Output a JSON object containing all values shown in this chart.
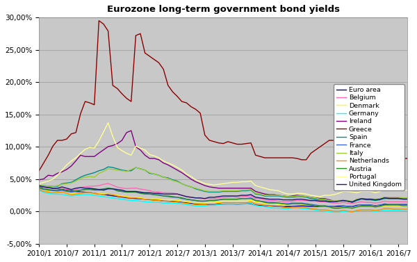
{
  "title": "Eurozone long-term government bond yields",
  "fig_background": "#FFFFFF",
  "plot_bg_color": "#C8C8C8",
  "ylim": [
    -0.05,
    0.3
  ],
  "yticks": [
    -0.05,
    0.0,
    0.05,
    0.1,
    0.15,
    0.2,
    0.25,
    0.3
  ],
  "xtick_labels": [
    "2010/1",
    "2010/7",
    "2011/1",
    "2011/7",
    "2012/1",
    "2012/7",
    "2013/1",
    "2013/7",
    "2014/1",
    "2014/7",
    "2015/1",
    "2015/7",
    "2016/1",
    "2016/7"
  ],
  "series_order": [
    "Euro area",
    "Belgium",
    "Denmark",
    "Germany",
    "Ireland",
    "Greece",
    "Spain",
    "France",
    "Italy",
    "Netherlands",
    "Austria",
    "Portugal",
    "United Kingdom"
  ],
  "series": {
    "Euro area": {
      "color": "#00008B",
      "linewidth": 1.0
    },
    "Belgium": {
      "color": "#FF69B4",
      "linewidth": 1.0
    },
    "Denmark": {
      "color": "#FFFF00",
      "linewidth": 1.0
    },
    "Germany": {
      "color": "#00FFFF",
      "linewidth": 1.0
    },
    "Ireland": {
      "color": "#800080",
      "linewidth": 1.0
    },
    "Greece": {
      "color": "#8B0000",
      "linewidth": 1.0
    },
    "Spain": {
      "color": "#008B8B",
      "linewidth": 1.0
    },
    "France": {
      "color": "#4169E1",
      "linewidth": 1.0
    },
    "Italy": {
      "color": "#9ACD32",
      "linewidth": 1.0
    },
    "Netherlands": {
      "color": "#FF8C00",
      "linewidth": 1.0
    },
    "Austria": {
      "color": "#228B22",
      "linewidth": 1.0
    },
    "Portugal": {
      "color": "#FFFF99",
      "linewidth": 1.0
    },
    "United Kingdom": {
      "color": "#191970",
      "linewidth": 1.0
    }
  },
  "data": {
    "Euro area": [
      0.039,
      0.038,
      0.037,
      0.036,
      0.0355,
      0.0345,
      0.0335,
      0.0325,
      0.031,
      0.0305,
      0.03,
      0.0295,
      0.0285,
      0.0275,
      0.0265,
      0.0255,
      0.0245,
      0.0235,
      0.0225,
      0.0215,
      0.0208,
      0.0203,
      0.0198,
      0.0193,
      0.0188,
      0.0183,
      0.0175,
      0.0165,
      0.016,
      0.0158,
      0.0152,
      0.0145,
      0.0138,
      0.0128,
      0.0118,
      0.0112,
      0.011,
      0.0112,
      0.0113,
      0.0115,
      0.0117,
      0.0118,
      0.0118,
      0.0116,
      0.0118,
      0.012,
      0.0122,
      0.01,
      0.0098,
      0.0092,
      0.0088,
      0.0085,
      0.0082,
      0.0075,
      0.0078,
      0.008,
      0.0085,
      0.0088,
      0.0085,
      0.0082,
      0.008,
      0.0078,
      0.0085,
      0.008,
      0.0078,
      0.0085,
      0.0088,
      0.0082,
      0.0078,
      0.0098,
      0.01,
      0.01,
      0.01,
      0.0092,
      0.0098,
      0.0108,
      0.0108,
      0.0108,
      0.0108,
      0.0108,
      0.0108
    ],
    "Belgium": [
      0.0395,
      0.0378,
      0.0372,
      0.0365,
      0.0358,
      0.0358,
      0.0342,
      0.0335,
      0.0342,
      0.0372,
      0.0385,
      0.0392,
      0.0395,
      0.0402,
      0.0422,
      0.0435,
      0.0408,
      0.0378,
      0.0365,
      0.0355,
      0.0362,
      0.0365,
      0.0348,
      0.0338,
      0.0325,
      0.0305,
      0.0302,
      0.0292,
      0.029,
      0.0288,
      0.0272,
      0.0255,
      0.0235,
      0.0222,
      0.0212,
      0.0202,
      0.02,
      0.0202,
      0.0202,
      0.0212,
      0.0222,
      0.0225,
      0.0232,
      0.0222,
      0.0232,
      0.0235,
      0.0242,
      0.02,
      0.0202,
      0.0182,
      0.0172,
      0.0172,
      0.0162,
      0.0152,
      0.0152,
      0.0162,
      0.0172,
      0.0172,
      0.0172,
      0.0162,
      0.0162,
      0.0152,
      0.0152,
      0.0142,
      0.0132,
      0.0132,
      0.0142,
      0.0132,
      0.0122,
      0.0142,
      0.0152,
      0.0142,
      0.0142,
      0.0132,
      0.0142,
      0.0162,
      0.0152,
      0.0152,
      0.0152,
      0.0152,
      0.0152
    ],
    "Denmark": [
      0.0368,
      0.0335,
      0.0322,
      0.0312,
      0.0302,
      0.0302,
      0.0282,
      0.0272,
      0.0282,
      0.0292,
      0.0292,
      0.0292,
      0.0282,
      0.0282,
      0.0272,
      0.0272,
      0.0262,
      0.0252,
      0.0242,
      0.0232,
      0.0222,
      0.0222,
      0.0212,
      0.0202,
      0.0202,
      0.0192,
      0.0192,
      0.0182,
      0.0182,
      0.0182,
      0.0172,
      0.0162,
      0.0152,
      0.0142,
      0.0132,
      0.0132,
      0.0132,
      0.0142,
      0.0142,
      0.0152,
      0.0162,
      0.0162,
      0.0162,
      0.0162,
      0.0162,
      0.0162,
      0.0172,
      0.0152,
      0.0142,
      0.0132,
      0.0122,
      0.0122,
      0.0112,
      0.0112,
      0.0112,
      0.0122,
      0.0122,
      0.0112,
      0.0112,
      0.0102,
      0.0092,
      0.0082,
      0.0082,
      0.0072,
      0.0062,
      0.0062,
      0.0072,
      0.0062,
      0.0052,
      0.0072,
      0.0082,
      0.0082,
      0.0082,
      0.0072,
      0.0082,
      0.0092,
      0.0092,
      0.0092,
      0.0092,
      0.0092,
      0.0092
    ],
    "Germany": [
      0.0332,
      0.0298,
      0.0282,
      0.0272,
      0.0268,
      0.0268,
      0.0252,
      0.0242,
      0.0252,
      0.0262,
      0.0262,
      0.0262,
      0.0252,
      0.0242,
      0.0232,
      0.0222,
      0.0212,
      0.0202,
      0.0192,
      0.0182,
      0.0172,
      0.0172,
      0.0162,
      0.0152,
      0.0148,
      0.0142,
      0.0142,
      0.0132,
      0.0132,
      0.0132,
      0.0128,
      0.0118,
      0.0108,
      0.0098,
      0.0088,
      0.0088,
      0.0088,
      0.0098,
      0.0098,
      0.0108,
      0.0118,
      0.0118,
      0.0118,
      0.0118,
      0.0118,
      0.0118,
      0.0128,
      0.0095,
      0.0085,
      0.0075,
      0.0065,
      0.0055,
      0.0055,
      0.0048,
      0.0045,
      0.0055,
      0.0058,
      0.0048,
      0.0045,
      0.0035,
      0.0025,
      0.0015,
      0.0008,
      0.0,
      -0.001,
      -0.001,
      0.0002,
      0.0,
      -0.001,
      0.0012,
      0.0015,
      0.0015,
      0.0012,
      0.0002,
      0.0012,
      0.0022,
      0.0022,
      0.0022,
      0.0022,
      0.0012,
      0.0012
    ],
    "Ireland": [
      0.0492,
      0.0505,
      0.0562,
      0.0552,
      0.0592,
      0.0615,
      0.0652,
      0.0705,
      0.0785,
      0.0872,
      0.0852,
      0.0852,
      0.0852,
      0.0905,
      0.0955,
      0.1005,
      0.1022,
      0.1052,
      0.1102,
      0.1222,
      0.1252,
      0.1002,
      0.0952,
      0.0872,
      0.0822,
      0.0822,
      0.0802,
      0.0752,
      0.0722,
      0.0682,
      0.0642,
      0.0602,
      0.0552,
      0.0502,
      0.0462,
      0.0432,
      0.0402,
      0.0382,
      0.0372,
      0.0362,
      0.0362,
      0.0362,
      0.0362,
      0.0362,
      0.0362,
      0.0362,
      0.0362,
      0.0312,
      0.0292,
      0.0272,
      0.0262,
      0.0262,
      0.0252,
      0.0242,
      0.0232,
      0.0242,
      0.0252,
      0.0242,
      0.0232,
      0.0222,
      0.0212,
      0.0202,
      0.0202,
      0.0182,
      0.0162,
      0.0162,
      0.0172,
      0.0162,
      0.0142,
      0.0182,
      0.0202,
      0.0192,
      0.0192,
      0.0182,
      0.0192,
      0.0222,
      0.0212,
      0.0212,
      0.0212,
      0.0202,
      0.0202
    ],
    "Greece": [
      0.0632,
      0.0752,
      0.0872,
      0.1012,
      0.1102,
      0.1102,
      0.1122,
      0.1202,
      0.1222,
      0.1512,
      0.1702,
      0.1682,
      0.1652,
      0.2952,
      0.29,
      0.2792,
      0.1952,
      0.1902,
      0.1822,
      0.1752,
      0.1702,
      0.2722,
      0.2752,
      0.2452,
      0.2402,
      0.2352,
      0.2302,
      0.2202,
      0.1952,
      0.1852,
      0.1782,
      0.1702,
      0.1682,
      0.1622,
      0.1582,
      0.1522,
      0.1182,
      0.1102,
      0.1082,
      0.1062,
      0.1052,
      0.1082,
      0.1062,
      0.1042,
      0.1042,
      0.1052,
      0.1062,
      0.0872,
      0.0852,
      0.0832,
      0.0832,
      0.0832,
      0.0832,
      0.0832,
      0.0832,
      0.0832,
      0.0822,
      0.0802,
      0.0802,
      0.0902,
      0.0952,
      0.1002,
      0.1052,
      0.1102,
      0.1102,
      0.1152,
      0.1102,
      0.1052,
      0.0992,
      0.0992,
      0.0812,
      0.0812,
      0.0812,
      0.0782,
      0.0802,
      0.0792,
      0.0822,
      0.0822,
      0.0822,
      0.0822,
      0.0822
    ],
    "Spain": [
      0.0392,
      0.0402,
      0.0392,
      0.0392,
      0.0392,
      0.0432,
      0.0442,
      0.0452,
      0.0492,
      0.0532,
      0.0562,
      0.0582,
      0.0602,
      0.0632,
      0.0652,
      0.0692,
      0.0682,
      0.0662,
      0.0642,
      0.0632,
      0.0632,
      0.0682,
      0.0662,
      0.0642,
      0.0592,
      0.0582,
      0.0562,
      0.0532,
      0.0522,
      0.0492,
      0.0472,
      0.0432,
      0.0402,
      0.0382,
      0.0352,
      0.0332,
      0.0312,
      0.0302,
      0.0302,
      0.0302,
      0.0312,
      0.0312,
      0.0312,
      0.0312,
      0.0322,
      0.0322,
      0.0332,
      0.0272,
      0.0262,
      0.0242,
      0.0242,
      0.0242,
      0.0242,
      0.0232,
      0.0222,
      0.0222,
      0.0232,
      0.0232,
      0.0222,
      0.0202,
      0.0192,
      0.0182,
      0.0182,
      0.0162,
      0.0152,
      0.0162,
      0.0172,
      0.0162,
      0.0142,
      0.0172,
      0.0192,
      0.0182,
      0.0182,
      0.0172,
      0.0182,
      0.0202,
      0.0202,
      0.0202,
      0.0202,
      0.0202,
      0.0202
    ],
    "France": [
      0.0362,
      0.0342,
      0.0332,
      0.0322,
      0.0318,
      0.0328,
      0.0312,
      0.0302,
      0.0312,
      0.0332,
      0.0342,
      0.0342,
      0.0332,
      0.0332,
      0.0342,
      0.0362,
      0.0352,
      0.0322,
      0.0312,
      0.0302,
      0.0302,
      0.0302,
      0.0292,
      0.0282,
      0.0272,
      0.0262,
      0.0262,
      0.0242,
      0.0232,
      0.0222,
      0.0222,
      0.0202,
      0.0192,
      0.0182,
      0.0172,
      0.0162,
      0.0162,
      0.0172,
      0.0172,
      0.0182,
      0.0192,
      0.0192,
      0.0192,
      0.0192,
      0.0202,
      0.0202,
      0.0212,
      0.0172,
      0.0162,
      0.0152,
      0.0142,
      0.0142,
      0.0132,
      0.0122,
      0.0122,
      0.0132,
      0.0132,
      0.0132,
      0.0122,
      0.0112,
      0.0102,
      0.0092,
      0.0092,
      0.0082,
      0.0072,
      0.0072,
      0.0082,
      0.0082,
      0.0072,
      0.0092,
      0.0102,
      0.0102,
      0.0102,
      0.0092,
      0.0102,
      0.0122,
      0.0112,
      0.0112,
      0.0112,
      0.0112,
      0.0112
    ],
    "Italy": [
      0.0402,
      0.0402,
      0.0392,
      0.0392,
      0.0402,
      0.0422,
      0.0432,
      0.0442,
      0.0472,
      0.0512,
      0.0532,
      0.0542,
      0.0532,
      0.0592,
      0.0622,
      0.0662,
      0.0652,
      0.0642,
      0.0632,
      0.0622,
      0.0652,
      0.0682,
      0.0662,
      0.0642,
      0.0602,
      0.0582,
      0.0562,
      0.0532,
      0.0512,
      0.0482,
      0.0462,
      0.0432,
      0.0402,
      0.0382,
      0.0362,
      0.0342,
      0.0322,
      0.0312,
      0.0312,
      0.0312,
      0.0322,
      0.0322,
      0.0322,
      0.0322,
      0.0332,
      0.0332,
      0.0342,
      0.0282,
      0.0272,
      0.0252,
      0.0252,
      0.0252,
      0.0252,
      0.0242,
      0.0232,
      0.0232,
      0.0242,
      0.0242,
      0.0232,
      0.0222,
      0.0212,
      0.0192,
      0.0192,
      0.0172,
      0.0162,
      0.0172,
      0.0182,
      0.0172,
      0.0152,
      0.0192,
      0.0202,
      0.0202,
      0.0202,
      0.0192,
      0.0202,
      0.0222,
      0.0222,
      0.0222,
      0.0222,
      0.0212,
      0.0212
    ],
    "Netherlands": [
      0.0342,
      0.0312,
      0.0302,
      0.0292,
      0.0292,
      0.0302,
      0.0282,
      0.0262,
      0.0272,
      0.0282,
      0.0292,
      0.0292,
      0.0282,
      0.0272,
      0.0262,
      0.0272,
      0.0262,
      0.0242,
      0.0232,
      0.0222,
      0.0212,
      0.0212,
      0.0202,
      0.0192,
      0.0182,
      0.0172,
      0.0172,
      0.0162,
      0.0162,
      0.0152,
      0.0148,
      0.0138,
      0.0128,
      0.0118,
      0.0108,
      0.0108,
      0.0108,
      0.0118,
      0.0118,
      0.0128,
      0.0138,
      0.0138,
      0.0138,
      0.0138,
      0.0138,
      0.0138,
      0.0148,
      0.0118,
      0.0108,
      0.0098,
      0.0088,
      0.0078,
      0.0078,
      0.0068,
      0.0058,
      0.0068,
      0.0068,
      0.0068,
      0.0058,
      0.0048,
      0.0038,
      0.0028,
      0.0028,
      0.0018,
      0.0008,
      0.0008,
      0.0018,
      0.0008,
      -0.0002,
      0.0018,
      0.0028,
      0.0028,
      0.0028,
      0.0018,
      0.0028,
      0.0048,
      0.0048,
      0.0038,
      0.0038,
      0.0038,
      0.0038
    ],
    "Austria": [
      0.0382,
      0.0352,
      0.0342,
      0.0332,
      0.0332,
      0.0342,
      0.0322,
      0.0312,
      0.0322,
      0.0332,
      0.0342,
      0.0352,
      0.0342,
      0.0342,
      0.0352,
      0.0362,
      0.0352,
      0.0322,
      0.0312,
      0.0302,
      0.0302,
      0.0302,
      0.0282,
      0.0272,
      0.0272,
      0.0262,
      0.0252,
      0.0242,
      0.0242,
      0.0232,
      0.0222,
      0.0212,
      0.0192,
      0.0182,
      0.0172,
      0.0162,
      0.0162,
      0.0172,
      0.0172,
      0.0182,
      0.0192,
      0.0192,
      0.0192,
      0.0192,
      0.0202,
      0.0202,
      0.0202,
      0.0172,
      0.0162,
      0.0142,
      0.0132,
      0.0132,
      0.0132,
      0.0122,
      0.0112,
      0.0122,
      0.0122,
      0.0122,
      0.0112,
      0.0102,
      0.0092,
      0.0082,
      0.0082,
      0.0072,
      0.0052,
      0.0052,
      0.0062,
      0.0062,
      0.0052,
      0.0072,
      0.0082,
      0.0082,
      0.0082,
      0.0072,
      0.0082,
      0.0102,
      0.0102,
      0.0102,
      0.0102,
      0.0092,
      0.0092
    ],
    "Portugal": [
      0.0432,
      0.0452,
      0.0472,
      0.0502,
      0.0562,
      0.0642,
      0.0722,
      0.0782,
      0.0832,
      0.0902,
      0.0962,
      0.0992,
      0.0982,
      0.1092,
      0.1232,
      0.1372,
      0.1162,
      0.0992,
      0.0942,
      0.0902,
      0.0872,
      0.1012,
      0.0982,
      0.0952,
      0.0882,
      0.0862,
      0.0832,
      0.0782,
      0.0752,
      0.0722,
      0.0682,
      0.0642,
      0.0582,
      0.0542,
      0.0492,
      0.0462,
      0.0432,
      0.0422,
      0.0412,
      0.0422,
      0.0432,
      0.0442,
      0.0452,
      0.0452,
      0.0462,
      0.0462,
      0.0472,
      0.0402,
      0.0382,
      0.0362,
      0.0342,
      0.0332,
      0.0322,
      0.0292,
      0.0272,
      0.0272,
      0.0282,
      0.0282,
      0.0272,
      0.0252,
      0.0242,
      0.0232,
      0.0252,
      0.0252,
      0.0262,
      0.0282,
      0.0312,
      0.0312,
      0.0302,
      0.0292,
      0.0312,
      0.0312,
      0.0312,
      0.0292,
      0.0312,
      0.0352,
      0.0342,
      0.0332,
      0.0332,
      0.0332,
      0.0332
    ],
    "United Kingdom": [
      0.0402,
      0.0382,
      0.0372,
      0.0362,
      0.0362,
      0.0382,
      0.0362,
      0.0342,
      0.0362,
      0.0372,
      0.0362,
      0.0362,
      0.0352,
      0.0342,
      0.0332,
      0.0352,
      0.0352,
      0.0342,
      0.0332,
      0.0312,
      0.0312,
      0.0312,
      0.0302,
      0.0292,
      0.0292,
      0.0282,
      0.0282,
      0.0272,
      0.0272,
      0.0272,
      0.0272,
      0.0252,
      0.0232,
      0.0222,
      0.0212,
      0.0212,
      0.0202,
      0.0222,
      0.0222,
      0.0232,
      0.0242,
      0.0242,
      0.0242,
      0.0242,
      0.0252,
      0.0252,
      0.0262,
      0.0222,
      0.0212,
      0.0202,
      0.0192,
      0.0192,
      0.0192,
      0.0182,
      0.0182,
      0.0182,
      0.0192,
      0.0192,
      0.0182,
      0.0172,
      0.0172,
      0.0162,
      0.0162,
      0.0152,
      0.0152,
      0.0162,
      0.0172,
      0.0162,
      0.0152,
      0.0182,
      0.0202,
      0.0192,
      0.0192,
      0.0182,
      0.0192,
      0.0212,
      0.0202,
      0.0202,
      0.0202,
      0.0192,
      0.0192
    ]
  }
}
